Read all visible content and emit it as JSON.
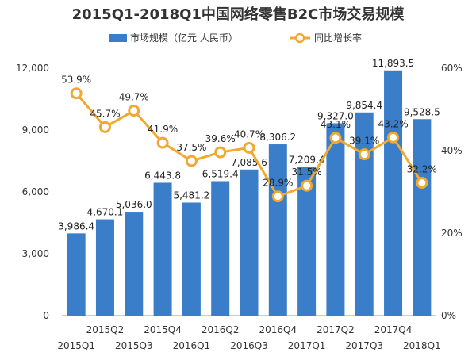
{
  "chart_data": {
    "type": "bar",
    "title": "2015Q1-2018Q1中国网络零售B2C市场交易规模",
    "legend": {
      "placement": "top",
      "items": [
        "市场规模（亿元 人民币）",
        "同比增长率"
      ]
    },
    "categories": [
      "2015Q1",
      "2015Q2",
      "2015Q3",
      "2015Q4",
      "2016Q1",
      "2016Q2",
      "2016Q3",
      "2016Q4",
      "2017Q1",
      "2017Q2",
      "2017Q3",
      "2017Q4",
      "2018Q1"
    ],
    "series": [
      {
        "name": "市场规模（亿元 人民币）",
        "type": "bar",
        "axis": "left",
        "values": [
          3986.4,
          4670.1,
          5036.0,
          6443.8,
          5481.2,
          6519.4,
          7085.6,
          8306.2,
          7209.4,
          9327.0,
          9854.4,
          11893.5,
          9528.5
        ],
        "labels": [
          "3,986.4",
          "4,670.1",
          "5,036.0",
          "6,443.8",
          "5,481.2",
          "6,519.4",
          "7,085.6",
          "8,306.2",
          "7,209.4",
          "9,327.0",
          "9,854.4",
          "11,893.5",
          "9,528.5"
        ]
      },
      {
        "name": "同比增长率",
        "type": "line",
        "axis": "right",
        "values": [
          53.9,
          45.7,
          49.7,
          41.9,
          37.5,
          39.6,
          40.7,
          28.9,
          31.5,
          43.1,
          39.1,
          43.2,
          32.2
        ],
        "labels": [
          "53.9%",
          "45.7%",
          "49.7%",
          "41.9%",
          "37.5%",
          "39.6%",
          "40.7%",
          "28.9%",
          "31.5%",
          "43.1%",
          "39.1%",
          "43.2%",
          "32.2%"
        ]
      }
    ],
    "y_left": {
      "range": [
        0,
        12000
      ],
      "ticks": [
        "0",
        "3,000",
        "6,000",
        "9,000",
        "12,000"
      ]
    },
    "y_right": {
      "range": [
        0,
        60
      ],
      "ticks": [
        "0%",
        "20%",
        "40%",
        "60%"
      ]
    },
    "grid": false,
    "colors": {
      "bar": "#3a7dc9",
      "line": "#f0a830",
      "marker_fill": "#ffffff",
      "axis_text": "#333333"
    }
  }
}
